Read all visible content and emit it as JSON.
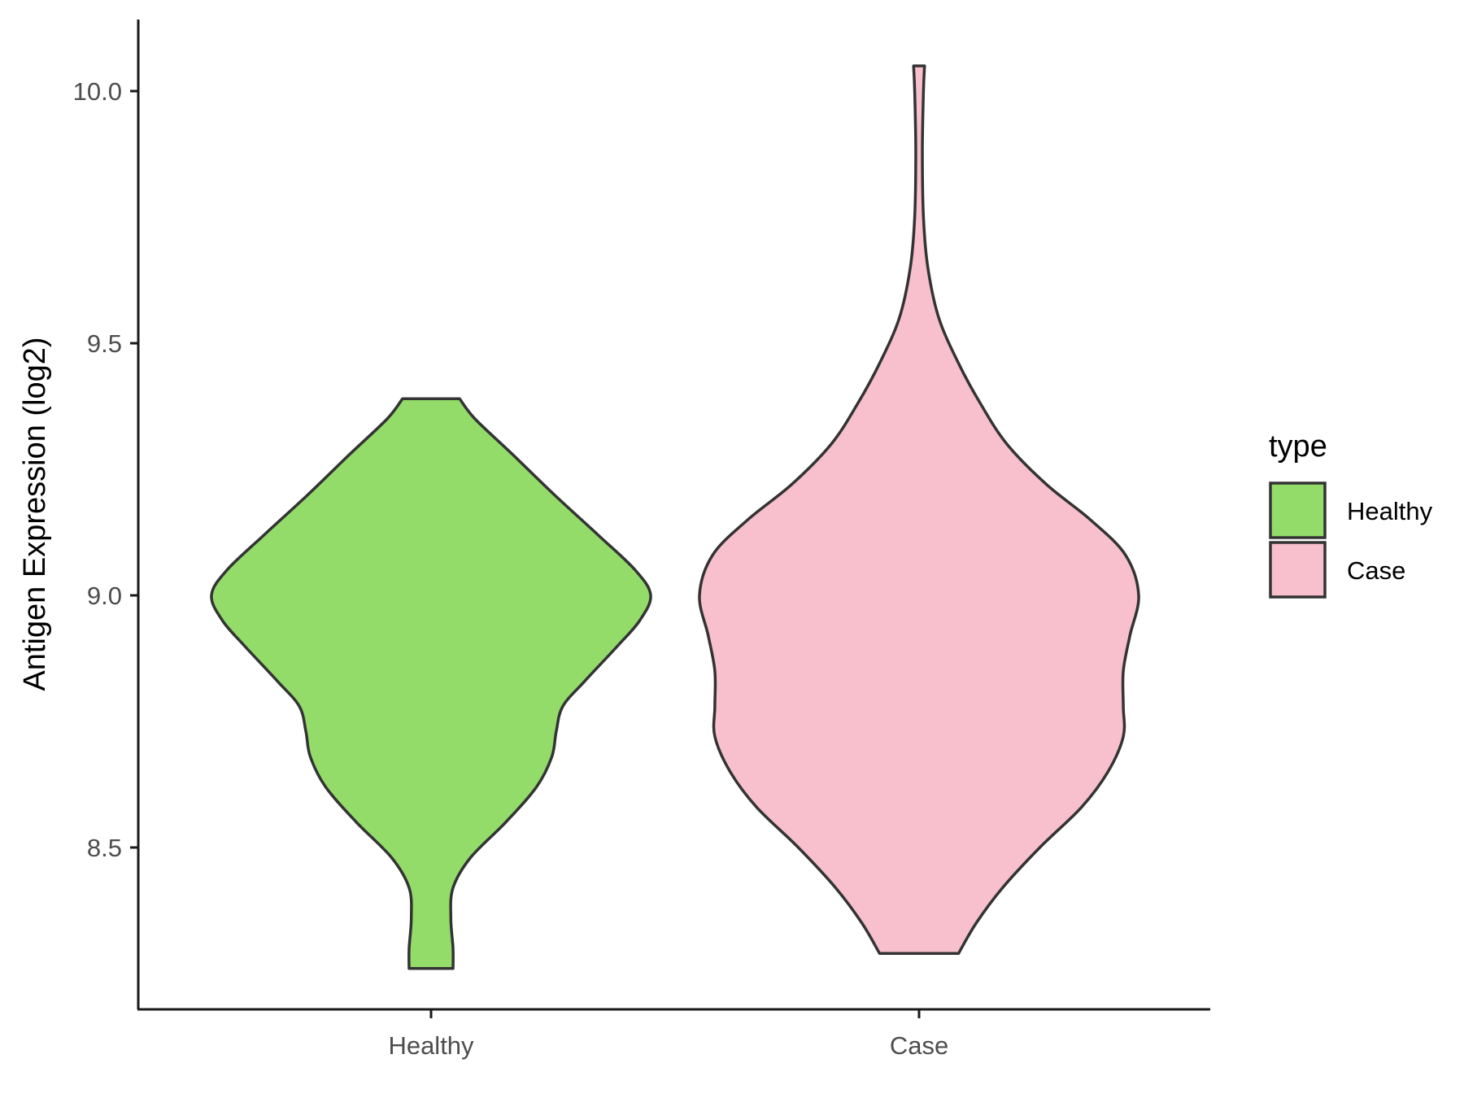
{
  "chart_data": {
    "type": "violin",
    "title": "",
    "xlabel": "",
    "ylabel": "Antigen Expression (log2)",
    "ylim": [
      8.18,
      10.13
    ],
    "yticks": [
      "8.5",
      "9.0",
      "9.5",
      "10.0"
    ],
    "categories": [
      "Healthy",
      "Case"
    ],
    "grid": false,
    "legend": {
      "title": "type",
      "position": "right",
      "entries": [
        {
          "label": "Healthy",
          "color": "#93dc6a"
        },
        {
          "label": "Case",
          "color": "#f8c0cc"
        }
      ]
    },
    "series": [
      {
        "name": "Healthy",
        "color": "#93dc6a",
        "min": 8.26,
        "max": 9.39,
        "density_profile": [
          {
            "y": 8.26,
            "w": 0.1
          },
          {
            "y": 8.3,
            "w": 0.1
          },
          {
            "y": 8.36,
            "w": 0.09
          },
          {
            "y": 8.42,
            "w": 0.1
          },
          {
            "y": 8.48,
            "w": 0.18
          },
          {
            "y": 8.55,
            "w": 0.34
          },
          {
            "y": 8.62,
            "w": 0.48
          },
          {
            "y": 8.68,
            "w": 0.55
          },
          {
            "y": 8.73,
            "w": 0.57
          },
          {
            "y": 8.78,
            "w": 0.6
          },
          {
            "y": 8.83,
            "w": 0.7
          },
          {
            "y": 8.9,
            "w": 0.85
          },
          {
            "y": 8.95,
            "w": 0.95
          },
          {
            "y": 9.0,
            "w": 1.0
          },
          {
            "y": 9.05,
            "w": 0.93
          },
          {
            "y": 9.12,
            "w": 0.76
          },
          {
            "y": 9.2,
            "w": 0.56
          },
          {
            "y": 9.28,
            "w": 0.37
          },
          {
            "y": 9.35,
            "w": 0.2
          },
          {
            "y": 9.39,
            "w": 0.13
          }
        ]
      },
      {
        "name": "Case",
        "color": "#f8c0cc",
        "min": 8.29,
        "max": 10.05,
        "density_profile": [
          {
            "y": 8.29,
            "w": 0.18
          },
          {
            "y": 8.35,
            "w": 0.26
          },
          {
            "y": 8.42,
            "w": 0.38
          },
          {
            "y": 8.5,
            "w": 0.55
          },
          {
            "y": 8.58,
            "w": 0.74
          },
          {
            "y": 8.65,
            "w": 0.86
          },
          {
            "y": 8.72,
            "w": 0.93
          },
          {
            "y": 8.78,
            "w": 0.93
          },
          {
            "y": 8.85,
            "w": 0.93
          },
          {
            "y": 8.92,
            "w": 0.96
          },
          {
            "y": 9.0,
            "w": 1.0
          },
          {
            "y": 9.08,
            "w": 0.94
          },
          {
            "y": 9.15,
            "w": 0.78
          },
          {
            "y": 9.22,
            "w": 0.58
          },
          {
            "y": 9.3,
            "w": 0.4
          },
          {
            "y": 9.38,
            "w": 0.28
          },
          {
            "y": 9.46,
            "w": 0.18
          },
          {
            "y": 9.55,
            "w": 0.09
          },
          {
            "y": 9.65,
            "w": 0.04
          },
          {
            "y": 9.75,
            "w": 0.02
          },
          {
            "y": 9.88,
            "w": 0.015
          },
          {
            "y": 10.0,
            "w": 0.02
          },
          {
            "y": 10.05,
            "w": 0.025
          }
        ]
      }
    ]
  }
}
